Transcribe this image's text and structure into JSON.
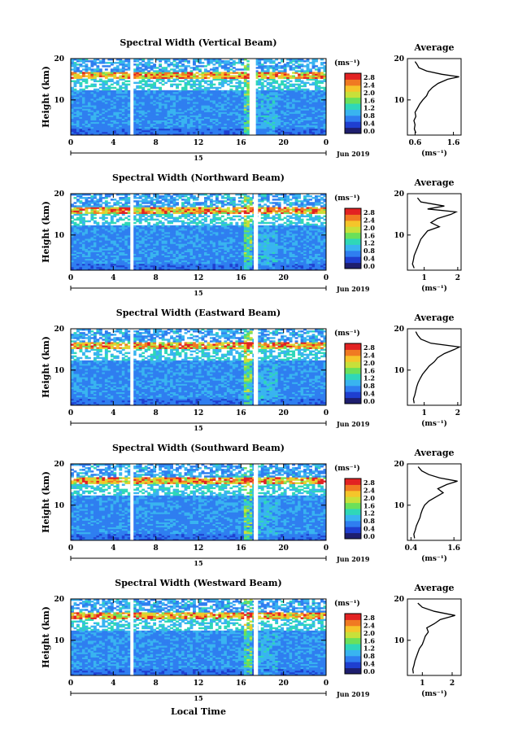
{
  "figure": {
    "xlabel": "Local Time",
    "date_label": "Jun 2019",
    "day_label": "15",
    "unit_label": "(ms⁻¹)",
    "avg_title": "Average",
    "avg_xlabel": "(ms⁻¹)"
  },
  "colorbar": {
    "ticks": [
      "2.8",
      "2.4",
      "2.0",
      "1.6",
      "1.2",
      "0.8",
      "0.4",
      "0.0"
    ],
    "colors": [
      "#1e1e6e",
      "#1f3fd0",
      "#2f7ef0",
      "#39b4f0",
      "#2fd7b8",
      "#6be05a",
      "#c8e03a",
      "#f5c52a",
      "#f07a22",
      "#e22222"
    ]
  },
  "chart_data": [
    {
      "type": "heatmap",
      "title": "Spectral Width (Vertical Beam)",
      "ylabel": "Height (km)",
      "x_ticks": [
        "0",
        "4",
        "8",
        "12",
        "16",
        "20",
        "0"
      ],
      "y_ticks": [
        "20",
        "10"
      ],
      "xlim": [
        0,
        24
      ],
      "ylim": [
        1.5,
        20
      ],
      "gaps_hours": [
        [
          5.6,
          5.9
        ],
        [
          16.8,
          17.4
        ]
      ],
      "average_profile": {
        "x_ticks": [
          "0.6",
          "1.6"
        ],
        "xlim": [
          0.4,
          1.8
        ],
        "y_ticks": [
          "20",
          "10"
        ],
        "ylim": [
          1.5,
          20
        ],
        "points": [
          [
            0.62,
            2
          ],
          [
            0.58,
            3
          ],
          [
            0.6,
            4
          ],
          [
            0.57,
            5
          ],
          [
            0.62,
            6
          ],
          [
            0.6,
            7
          ],
          [
            0.66,
            8
          ],
          [
            0.72,
            9
          ],
          [
            0.8,
            10
          ],
          [
            0.9,
            11
          ],
          [
            0.95,
            12
          ],
          [
            1.05,
            13
          ],
          [
            1.2,
            14
          ],
          [
            1.45,
            15
          ],
          [
            1.75,
            15.6
          ],
          [
            1.3,
            16.2
          ],
          [
            0.9,
            17
          ],
          [
            0.7,
            17.8
          ],
          [
            0.65,
            18.6
          ],
          [
            0.6,
            19.3
          ]
        ]
      }
    },
    {
      "type": "heatmap",
      "title": "Spectral Width (Northward Beam)",
      "ylabel": "Height (km)",
      "x_ticks": [
        "0",
        "4",
        "8",
        "12",
        "16",
        "20",
        "0"
      ],
      "y_ticks": [
        "20",
        "10"
      ],
      "xlim": [
        0,
        24
      ],
      "ylim": [
        1.5,
        20
      ],
      "gaps_hours": [
        [
          5.6,
          5.9
        ],
        [
          17.2,
          17.6
        ]
      ],
      "average_profile": {
        "x_ticks": [
          "1",
          "2"
        ],
        "xlim": [
          0.5,
          2.1
        ],
        "y_ticks": [
          "20",
          "10"
        ],
        "ylim": [
          1.5,
          20
        ],
        "points": [
          [
            0.7,
            2
          ],
          [
            0.65,
            3
          ],
          [
            0.68,
            4
          ],
          [
            0.7,
            5
          ],
          [
            0.75,
            6
          ],
          [
            0.8,
            7
          ],
          [
            0.85,
            8
          ],
          [
            0.9,
            9
          ],
          [
            1.0,
            10
          ],
          [
            1.1,
            11
          ],
          [
            1.45,
            12
          ],
          [
            1.2,
            13
          ],
          [
            1.4,
            14
          ],
          [
            1.8,
            15
          ],
          [
            1.95,
            15.6
          ],
          [
            1.1,
            16.3
          ],
          [
            1.6,
            17
          ],
          [
            0.9,
            18
          ],
          [
            0.8,
            19
          ]
        ]
      }
    },
    {
      "type": "heatmap",
      "title": "Spectral Width (Eastward Beam)",
      "ylabel": "Height (km)",
      "x_ticks": [
        "0",
        "4",
        "8",
        "12",
        "16",
        "20",
        "0"
      ],
      "y_ticks": [
        "20",
        "10"
      ],
      "xlim": [
        0,
        24
      ],
      "ylim": [
        1.5,
        20
      ],
      "gaps_hours": [
        [
          5.6,
          5.9
        ],
        [
          17.2,
          17.6
        ]
      ],
      "average_profile": {
        "x_ticks": [
          "1",
          "2"
        ],
        "xlim": [
          0.5,
          2.1
        ],
        "y_ticks": [
          "20",
          "10"
        ],
        "ylim": [
          1.5,
          20
        ],
        "points": [
          [
            0.7,
            2
          ],
          [
            0.68,
            3
          ],
          [
            0.72,
            4
          ],
          [
            0.75,
            5
          ],
          [
            0.78,
            6
          ],
          [
            0.82,
            7
          ],
          [
            0.88,
            8
          ],
          [
            0.95,
            9
          ],
          [
            1.05,
            10
          ],
          [
            1.15,
            11
          ],
          [
            1.3,
            12
          ],
          [
            1.4,
            13
          ],
          [
            1.6,
            14
          ],
          [
            1.9,
            15
          ],
          [
            2.05,
            15.6
          ],
          [
            1.2,
            16.5
          ],
          [
            0.9,
            17.5
          ],
          [
            0.8,
            18.5
          ],
          [
            0.75,
            19.3
          ]
        ]
      }
    },
    {
      "type": "heatmap",
      "title": "Spectral Width (Southward Beam)",
      "ylabel": "Height (km)",
      "x_ticks": [
        "0",
        "4",
        "8",
        "12",
        "16",
        "20",
        "0"
      ],
      "y_ticks": [
        "20",
        "10"
      ],
      "xlim": [
        0,
        24
      ],
      "ylim": [
        1.5,
        20
      ],
      "gaps_hours": [
        [
          5.6,
          5.9
        ],
        [
          17.2,
          17.6
        ]
      ],
      "average_profile": {
        "x_ticks": [
          "0.4",
          "1.6"
        ],
        "xlim": [
          0.3,
          1.8
        ],
        "y_ticks": [
          "20",
          "10"
        ],
        "ylim": [
          1.5,
          20
        ],
        "points": [
          [
            0.5,
            2
          ],
          [
            0.48,
            3
          ],
          [
            0.52,
            4
          ],
          [
            0.55,
            5
          ],
          [
            0.6,
            6
          ],
          [
            0.65,
            7
          ],
          [
            0.68,
            8
          ],
          [
            0.72,
            9
          ],
          [
            0.78,
            10
          ],
          [
            0.9,
            11
          ],
          [
            1.1,
            12
          ],
          [
            1.3,
            13
          ],
          [
            1.15,
            14
          ],
          [
            1.4,
            15
          ],
          [
            1.7,
            15.8
          ],
          [
            1.2,
            16.6
          ],
          [
            0.9,
            17.4
          ],
          [
            0.7,
            18.3
          ],
          [
            0.6,
            19.3
          ]
        ]
      }
    },
    {
      "type": "heatmap",
      "title": "Spectral Width (Westward Beam)",
      "ylabel": "Height (km)",
      "x_ticks": [
        "0",
        "4",
        "8",
        "12",
        "16",
        "20",
        "0"
      ],
      "y_ticks": [
        "20",
        "10"
      ],
      "xlim": [
        0,
        24
      ],
      "ylim": [
        1.5,
        20
      ],
      "gaps_hours": [
        [
          5.6,
          5.9
        ],
        [
          17.2,
          17.6
        ]
      ],
      "average_profile": {
        "x_ticks": [
          "1",
          "2"
        ],
        "xlim": [
          0.5,
          2.3
        ],
        "y_ticks": [
          "20",
          "10"
        ],
        "ylim": [
          1.5,
          20
        ],
        "points": [
          [
            0.7,
            2
          ],
          [
            0.68,
            3
          ],
          [
            0.72,
            4
          ],
          [
            0.75,
            5
          ],
          [
            0.8,
            6
          ],
          [
            0.85,
            7
          ],
          [
            0.9,
            8
          ],
          [
            1.0,
            9
          ],
          [
            1.05,
            10
          ],
          [
            1.1,
            11
          ],
          [
            1.2,
            12
          ],
          [
            1.15,
            13
          ],
          [
            1.4,
            14
          ],
          [
            1.6,
            15
          ],
          [
            2.1,
            16
          ],
          [
            1.4,
            17
          ],
          [
            1.0,
            18
          ],
          [
            0.85,
            19
          ]
        ]
      }
    }
  ]
}
